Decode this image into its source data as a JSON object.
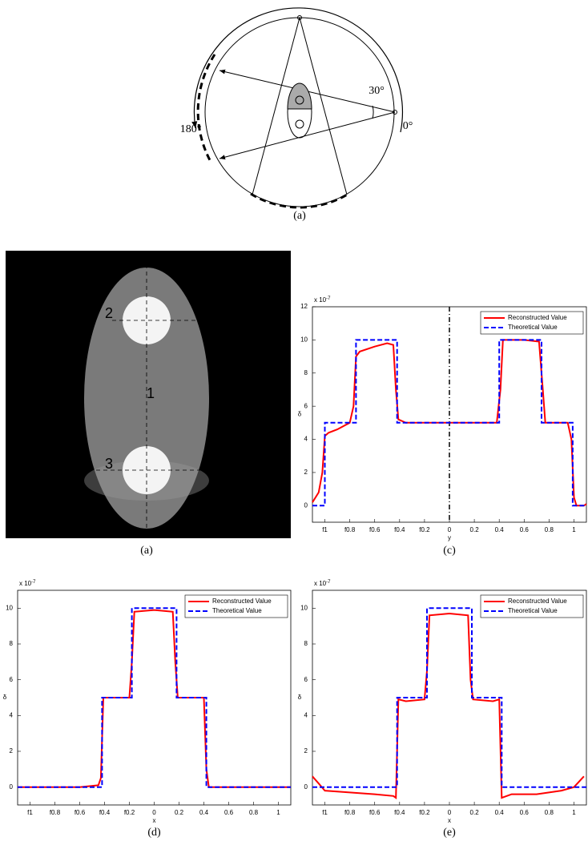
{
  "diagram": {
    "labels": [
      "30°",
      "180°",
      "0°"
    ],
    "caption": "(a)"
  },
  "image": {
    "labels": [
      "1",
      "2",
      "3"
    ],
    "caption": "(a)"
  },
  "chart_data": [
    {
      "type": "line",
      "caption": "(c)",
      "xlabel": "y",
      "ylabel": "δ",
      "y_multiplier": "x 10",
      "y_multiplier_exponent": "-7",
      "xlim": [
        -1.1,
        1.1
      ],
      "ylim": [
        -1,
        12
      ],
      "xticks": [
        {
          "value": -1,
          "label": "f1"
        },
        {
          "value": -0.8,
          "label": "f0.8"
        },
        {
          "value": -0.6,
          "label": "f0.6"
        },
        {
          "value": -0.4,
          "label": "f0.4"
        },
        {
          "value": -0.2,
          "label": "f0.2"
        },
        0,
        0.2,
        0.4,
        0.6,
        0.8,
        1
      ],
      "yticks": [
        0,
        2,
        4,
        6,
        8,
        10,
        12
      ],
      "legend": "upper right",
      "vline": 0,
      "series": [
        {
          "name": "Reconstructed Value",
          "color": "#ff0000",
          "linestyle": "solid",
          "x": [
            -1.1,
            -1.05,
            -1.02,
            -1.0,
            -0.97,
            -0.9,
            -0.8,
            -0.77,
            -0.75,
            -0.72,
            -0.6,
            -0.5,
            -0.45,
            -0.43,
            -0.41,
            -0.35,
            0,
            0.38,
            0.41,
            0.43,
            0.6,
            0.72,
            0.75,
            0.77,
            0.95,
            0.98,
            1.0,
            1.02,
            1.08,
            1.1
          ],
          "values": [
            0.2,
            0.8,
            2,
            4.2,
            4.4,
            4.6,
            5.0,
            6,
            9,
            9.3,
            9.6,
            9.8,
            9.7,
            7,
            5.2,
            5,
            5,
            5,
            7,
            10,
            10,
            9.9,
            7,
            5,
            5,
            4,
            0.5,
            0,
            0,
            0.1
          ]
        },
        {
          "name": "Theoretical Value",
          "color": "#0000ff",
          "linestyle": "dashed",
          "x": [
            -1.1,
            -1,
            -1,
            -0.75,
            -0.75,
            -0.42,
            -0.42,
            0.4,
            0.4,
            0.74,
            0.74,
            0.99,
            0.99,
            1.1
          ],
          "values": [
            0,
            0,
            5,
            5,
            10,
            10,
            5,
            5,
            10,
            10,
            5,
            5,
            0,
            0
          ]
        }
      ]
    },
    {
      "type": "line",
      "caption": "(d)",
      "xlabel": "x",
      "ylabel": "δ",
      "y_multiplier": "x 10",
      "y_multiplier_exponent": "-7",
      "xlim": [
        -1.1,
        1.1
      ],
      "ylim": [
        -1,
        11
      ],
      "xticks": [
        {
          "value": -1,
          "label": "f1"
        },
        {
          "value": -0.8,
          "label": "f0.8"
        },
        {
          "value": -0.6,
          "label": "f0.6"
        },
        {
          "value": -0.4,
          "label": "f0.4"
        },
        {
          "value": -0.2,
          "label": "f0.2"
        },
        0,
        0.2,
        0.4,
        0.6,
        0.8,
        1
      ],
      "yticks": [
        0,
        2,
        4,
        6,
        8,
        10
      ],
      "legend": "upper right",
      "series": [
        {
          "name": "Reconstructed Value",
          "color": "#ff0000",
          "linestyle": "solid",
          "x": [
            -1.1,
            -0.8,
            -0.6,
            -0.45,
            -0.43,
            -0.41,
            -0.2,
            -0.18,
            -0.16,
            0,
            0.15,
            0.17,
            0.19,
            0.4,
            0.42,
            0.44,
            0.7,
            1.1
          ],
          "values": [
            0,
            0,
            0,
            0.1,
            0.5,
            5,
            5,
            7,
            9.8,
            9.9,
            9.8,
            7,
            5,
            5,
            1,
            0,
            0,
            0
          ]
        },
        {
          "name": "Theoretical Value",
          "color": "#0000ff",
          "linestyle": "dashed",
          "x": [
            -1.1,
            -0.42,
            -0.42,
            -0.18,
            -0.18,
            0.18,
            0.18,
            0.42,
            0.42,
            1.1
          ],
          "values": [
            0,
            0,
            5,
            5,
            10,
            10,
            5,
            5,
            0,
            0
          ]
        }
      ]
    },
    {
      "type": "line",
      "caption": "(e)",
      "xlabel": "x",
      "ylabel": "δ",
      "y_multiplier": "x 10",
      "y_multiplier_exponent": "-7",
      "xlim": [
        -1.1,
        1.1
      ],
      "ylim": [
        -1,
        11
      ],
      "xticks": [
        {
          "value": -1,
          "label": "f1"
        },
        {
          "value": -0.8,
          "label": "f0.8"
        },
        {
          "value": -0.6,
          "label": "f0.6"
        },
        {
          "value": -0.4,
          "label": "f0.4"
        },
        {
          "value": -0.2,
          "label": "f0.2"
        },
        0,
        0.2,
        0.4,
        0.6,
        0.8,
        1
      ],
      "yticks": [
        0,
        2,
        4,
        6,
        8,
        10
      ],
      "legend": "upper right",
      "series": [
        {
          "name": "Reconstructed Value",
          "color": "#ff0000",
          "linestyle": "solid",
          "x": [
            -1.1,
            -1.05,
            -1.0,
            -0.8,
            -0.6,
            -0.45,
            -0.43,
            -0.41,
            -0.35,
            -0.2,
            -0.18,
            -0.16,
            0,
            0.15,
            0.17,
            0.19,
            0.35,
            0.4,
            0.42,
            0.5,
            0.7,
            0.9,
            1.0,
            1.08
          ],
          "values": [
            0.6,
            0.2,
            -0.2,
            -0.3,
            -0.4,
            -0.5,
            -0.6,
            4.9,
            4.8,
            4.9,
            6.5,
            9.6,
            9.7,
            9.6,
            6,
            4.9,
            4.8,
            4.9,
            -0.6,
            -0.4,
            -0.4,
            -0.2,
            0,
            0.6
          ]
        },
        {
          "name": "Theoretical Value",
          "color": "#0000ff",
          "linestyle": "dashed",
          "x": [
            -1.1,
            -0.42,
            -0.42,
            -0.18,
            -0.18,
            0.18,
            0.18,
            0.42,
            0.42,
            1.1
          ],
          "values": [
            0,
            0,
            5,
            5,
            10,
            10,
            5,
            5,
            0,
            0
          ]
        }
      ]
    }
  ]
}
